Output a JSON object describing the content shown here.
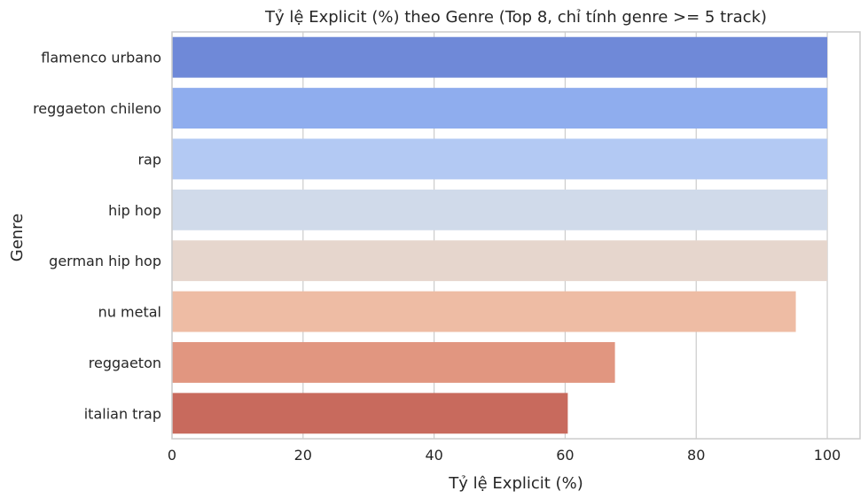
{
  "chart_data": {
    "type": "bar",
    "orientation": "horizontal",
    "title": "Tỷ lệ Explicit (%) theo Genre (Top 8, chỉ tính genre >= 5 track)",
    "xlabel": "Tỷ lệ Explicit (%)",
    "ylabel": "Genre",
    "categories": [
      "flamenco urbano",
      "reggaeton chileno",
      "rap",
      "hip hop",
      "german hip hop",
      "nu metal",
      "reggaeton",
      "italian trap"
    ],
    "values": [
      100,
      100,
      100,
      100,
      100,
      95.2,
      67.6,
      60.4
    ],
    "colors": [
      "#6f89d8",
      "#8fadee",
      "#b3c9f3",
      "#d0daea",
      "#e6d6cd",
      "#eebca4",
      "#e19680",
      "#c86a5d"
    ],
    "xticks": [
      "0",
      "20",
      "40",
      "60",
      "80",
      "100"
    ],
    "xlim": [
      0,
      105
    ],
    "grid": true,
    "grid_axis": "x"
  }
}
